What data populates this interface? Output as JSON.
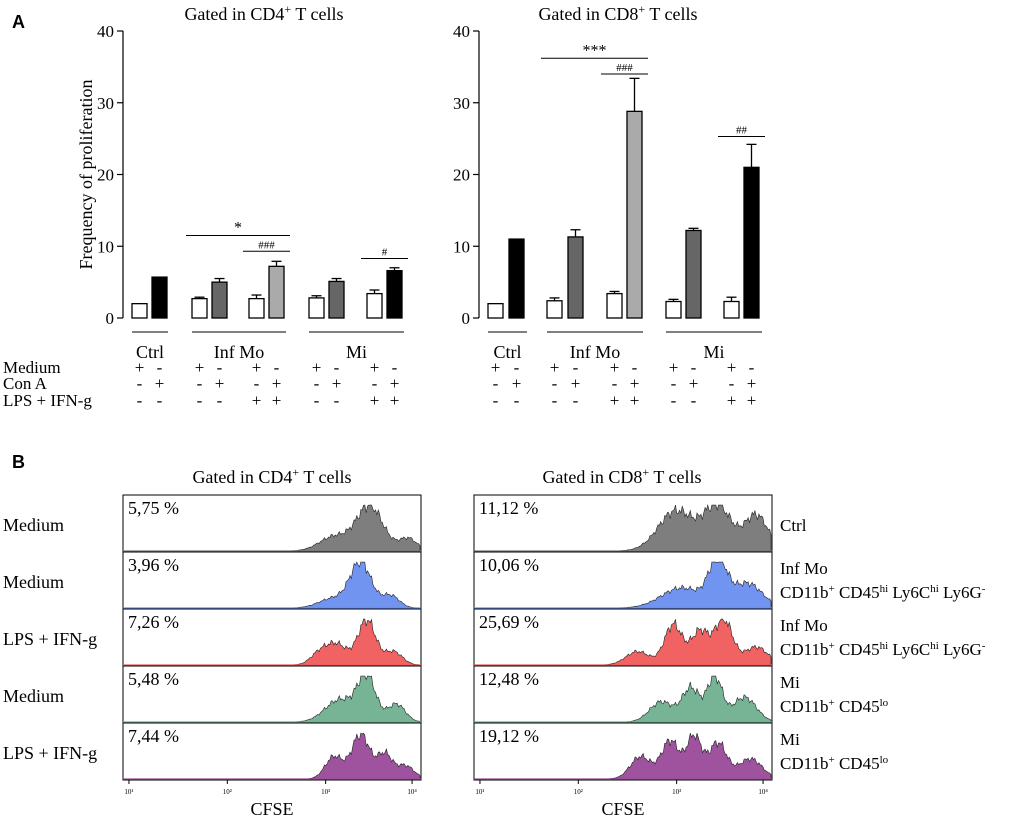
{
  "panel_labels": {
    "a": "A",
    "b": "B"
  },
  "chart_data": [
    {
      "type": "bar",
      "title_main": "Gated in CD4",
      "title_sup": "+",
      "title_rest": " T cells",
      "ylabel": "Frequency of proliferation",
      "ylim": [
        0,
        40
      ],
      "yticks": [
        0,
        10,
        20,
        30,
        40
      ],
      "groups": [
        {
          "label": "Ctrl",
          "bars": [
            0,
            1
          ]
        },
        {
          "label": "Inf Mo",
          "bars": [
            2,
            3,
            4,
            5
          ]
        },
        {
          "label": "Mi",
          "bars": [
            6,
            7,
            8,
            9
          ]
        }
      ],
      "bars": [
        {
          "value": 2.0,
          "error": 0,
          "fill": "#ffffff"
        },
        {
          "value": 5.7,
          "error": 0,
          "fill": "#000000"
        },
        {
          "value": 2.7,
          "error": 0.2,
          "fill": "#ffffff"
        },
        {
          "value": 5.0,
          "error": 0.5,
          "fill": "#666666"
        },
        {
          "value": 2.7,
          "error": 0.5,
          "fill": "#ffffff"
        },
        {
          "value": 7.2,
          "error": 0.7,
          "fill": "#aaaaaa"
        },
        {
          "value": 2.8,
          "error": 0.3,
          "fill": "#ffffff"
        },
        {
          "value": 5.1,
          "error": 0.4,
          "fill": "#666666"
        },
        {
          "value": 3.4,
          "error": 0.5,
          "fill": "#ffffff"
        },
        {
          "value": 6.6,
          "error": 0.4,
          "fill": "#000000"
        }
      ],
      "conditions": {
        "medium": [
          "+",
          "-",
          "+",
          "-",
          "+",
          "-",
          "+",
          "-",
          "+",
          "-"
        ],
        "con_a": [
          "-",
          "+",
          "-",
          "+",
          "-",
          "+",
          "-",
          "+",
          "-",
          "+"
        ],
        "lps": [
          "-",
          "-",
          "-",
          "-",
          "+",
          "+",
          "-",
          "-",
          "+",
          "+"
        ]
      },
      "annotations": [
        {
          "text": "*",
          "from": 2,
          "to": 5,
          "y": 11.5,
          "font": 16
        },
        {
          "text": "###",
          "from": 4,
          "to": 5,
          "y": 9.3,
          "font": 11
        },
        {
          "text": "#",
          "from": 8,
          "to": 9,
          "y": 8.3,
          "font": 11
        }
      ]
    },
    {
      "type": "bar",
      "title_main": "Gated in CD8",
      "title_sup": "+",
      "title_rest": " T cells",
      "ylabel": "",
      "ylim": [
        0,
        40
      ],
      "yticks": [
        0,
        10,
        20,
        30,
        40
      ],
      "groups": [
        {
          "label": "Ctrl",
          "bars": [
            0,
            1
          ]
        },
        {
          "label": "Inf Mo",
          "bars": [
            2,
            3,
            4,
            5
          ]
        },
        {
          "label": "Mi",
          "bars": [
            6,
            7,
            8,
            9
          ]
        }
      ],
      "bars": [
        {
          "value": 2.0,
          "error": 0,
          "fill": "#ffffff"
        },
        {
          "value": 11.0,
          "error": 0,
          "fill": "#000000"
        },
        {
          "value": 2.4,
          "error": 0.4,
          "fill": "#ffffff"
        },
        {
          "value": 11.3,
          "error": 1.0,
          "fill": "#666666"
        },
        {
          "value": 3.4,
          "error": 0.3,
          "fill": "#ffffff"
        },
        {
          "value": 28.8,
          "error": 4.6,
          "fill": "#aaaaaa"
        },
        {
          "value": 2.3,
          "error": 0.3,
          "fill": "#ffffff"
        },
        {
          "value": 12.2,
          "error": 0.3,
          "fill": "#666666"
        },
        {
          "value": 2.3,
          "error": 0.6,
          "fill": "#ffffff"
        },
        {
          "value": 21.0,
          "error": 3.2,
          "fill": "#000000"
        }
      ],
      "conditions": {
        "medium": [
          "+",
          "-",
          "+",
          "-",
          "+",
          "-",
          "+",
          "-",
          "+",
          "-"
        ],
        "con_a": [
          "-",
          "+",
          "-",
          "+",
          "-",
          "+",
          "-",
          "+",
          "-",
          "+"
        ],
        "lps": [
          "-",
          "-",
          "-",
          "-",
          "+",
          "+",
          "-",
          "-",
          "+",
          "+"
        ]
      },
      "annotations": [
        {
          "text": "***",
          "from": 2,
          "to": 5,
          "y": 36.2,
          "font": 16
        },
        {
          "text": "###",
          "from": 4,
          "to": 5,
          "y": 34.0,
          "font": 11
        },
        {
          "text": "##",
          "from": 8,
          "to": 9,
          "y": 25.3,
          "font": 11
        }
      ]
    }
  ],
  "condition_labels": {
    "medium": "Medium",
    "con_a": "Con A",
    "lps": "LPS + IFN-g"
  },
  "flow": {
    "xlabel": "CFSE",
    "tick_labels": [
      "10¹",
      "10²",
      "10³",
      "10⁴"
    ],
    "left_title": {
      "main": "Gated in CD4",
      "sup": "+",
      "rest": " T cells"
    },
    "right_title": {
      "main": "Gated in CD8",
      "sup": "+",
      "rest": " T cells"
    },
    "rows": [
      {
        "left_label": "Medium",
        "color": "#777777",
        "left_pct": "5,75 %",
        "right_pct": "11,12 %",
        "right_label": [
          {
            "t": "Ctrl"
          }
        ],
        "right_label2": [],
        "left_peaks": [
          [
            0.83,
            0.045,
            1.0
          ],
          [
            0.71,
            0.05,
            0.32
          ],
          [
            0.96,
            0.03,
            0.28
          ]
        ],
        "right_peaks": [
          [
            0.68,
            0.06,
            0.9
          ],
          [
            0.82,
            0.045,
            1.0
          ],
          [
            0.95,
            0.04,
            0.8
          ]
        ]
      },
      {
        "left_label": "Medium",
        "color": "#6a8ef0",
        "left_pct": "3,96 %",
        "right_pct": "10,06 %",
        "right_label": [
          {
            "t": "Inf Mo"
          }
        ],
        "right_label2": [
          {
            "t": "CD11b"
          },
          {
            "t": "+",
            "sup": true
          },
          {
            "t": " CD45"
          },
          {
            "t": "hi",
            "sup": true
          },
          {
            "t": " Ly6C"
          },
          {
            "t": "hi",
            "sup": true
          },
          {
            "t": " Ly6G"
          },
          {
            "t": "-",
            "sup": true
          }
        ],
        "left_peaks": [
          [
            0.8,
            0.035,
            1.0
          ],
          [
            0.71,
            0.05,
            0.22
          ],
          [
            0.9,
            0.03,
            0.28
          ]
        ],
        "right_peaks": [
          [
            0.82,
            0.03,
            1.0
          ],
          [
            0.7,
            0.07,
            0.45
          ],
          [
            0.92,
            0.05,
            0.55
          ]
        ]
      },
      {
        "left_label": "LPS + IFN-g",
        "color": "#f05a5a",
        "left_pct": "7,26 %",
        "right_pct": "25,69 %",
        "right_label": [
          {
            "t": "Inf Mo"
          }
        ],
        "right_label2": [
          {
            "t": "CD11b"
          },
          {
            "t": "+",
            "sup": true
          },
          {
            "t": " CD45"
          },
          {
            "t": "hi",
            "sup": true
          },
          {
            "t": " Ly6C"
          },
          {
            "t": "hi",
            "sup": true
          },
          {
            "t": " Ly6G"
          },
          {
            "t": "-",
            "sup": true
          }
        ],
        "left_peaks": [
          [
            0.82,
            0.03,
            1.0
          ],
          [
            0.72,
            0.035,
            0.45
          ],
          [
            0.66,
            0.03,
            0.25
          ],
          [
            0.91,
            0.03,
            0.3
          ]
        ],
        "right_peaks": [
          [
            0.55,
            0.04,
            0.3
          ],
          [
            0.67,
            0.03,
            0.9
          ],
          [
            0.76,
            0.03,
            0.75
          ],
          [
            0.84,
            0.03,
            1.0
          ],
          [
            0.95,
            0.04,
            0.4
          ]
        ]
      },
      {
        "left_label": "Medium",
        "color": "#6fb08f",
        "left_pct": "5,48 %",
        "right_pct": "12,48 %",
        "right_label": [
          {
            "t": "Mi"
          }
        ],
        "right_label2": [
          {
            "t": "CD11b"
          },
          {
            "t": "+",
            "sup": true
          },
          {
            "t": " CD45"
          },
          {
            "t": "lo",
            "sup": true
          }
        ],
        "left_peaks": [
          [
            0.82,
            0.03,
            1.0
          ],
          [
            0.73,
            0.05,
            0.5
          ],
          [
            0.92,
            0.03,
            0.4
          ]
        ],
        "right_peaks": [
          [
            0.63,
            0.04,
            0.45
          ],
          [
            0.73,
            0.03,
            0.75
          ],
          [
            0.81,
            0.025,
            1.0
          ],
          [
            0.91,
            0.04,
            0.55
          ]
        ]
      },
      {
        "left_label": "LPS + IFN-g",
        "color": "#9a4a9a",
        "left_pct": "7,44 %",
        "right_pct": "19,12 %",
        "right_label": [
          {
            "t": "Mi"
          }
        ],
        "right_label2": [
          {
            "t": "CD11b"
          },
          {
            "t": "+",
            "sup": true
          },
          {
            "t": " CD45"
          },
          {
            "t": "lo",
            "sup": true
          }
        ],
        "left_peaks": [
          [
            0.8,
            0.03,
            1.0
          ],
          [
            0.71,
            0.03,
            0.5
          ],
          [
            0.88,
            0.025,
            0.55
          ],
          [
            0.95,
            0.03,
            0.3
          ]
        ],
        "right_peaks": [
          [
            0.56,
            0.035,
            0.5
          ],
          [
            0.66,
            0.03,
            0.85
          ],
          [
            0.74,
            0.025,
            0.95
          ],
          [
            0.82,
            0.03,
            0.8
          ],
          [
            0.93,
            0.04,
            0.45
          ]
        ]
      }
    ]
  }
}
